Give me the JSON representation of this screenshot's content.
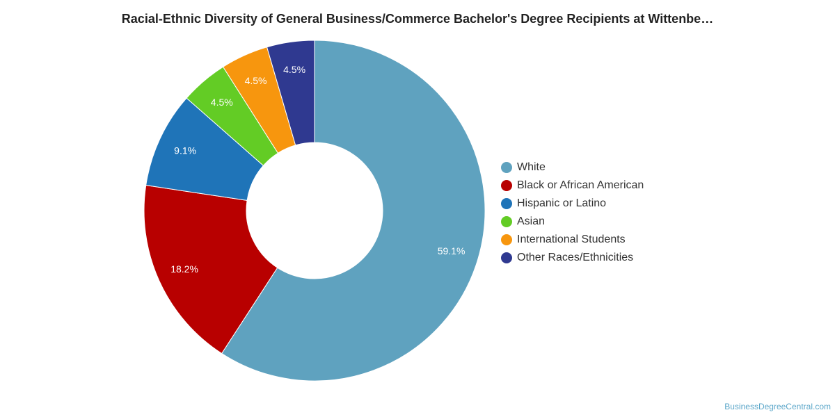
{
  "chart_data": {
    "type": "pie",
    "title": "Racial-Ethnic Diversity of General Business/Commerce Bachelor's Degree Recipients at Wittenbe…",
    "categories": [
      "White",
      "Black or African American",
      "Hispanic or Latino",
      "Asian",
      "International Students",
      "Other Races/Ethnicities"
    ],
    "values": [
      59.1,
      18.2,
      9.1,
      4.5,
      4.5,
      4.5
    ],
    "value_labels": [
      "59.1%",
      "18.2%",
      "9.1%",
      "4.5%",
      "4.5%",
      "4.5%"
    ],
    "colors": [
      "#5fa2bf",
      "#b80000",
      "#1f74b8",
      "#63cc25",
      "#f7960e",
      "#2f3990"
    ],
    "donut": true,
    "legend_position": "right"
  },
  "credit": "BusinessDegreeCentral.com"
}
